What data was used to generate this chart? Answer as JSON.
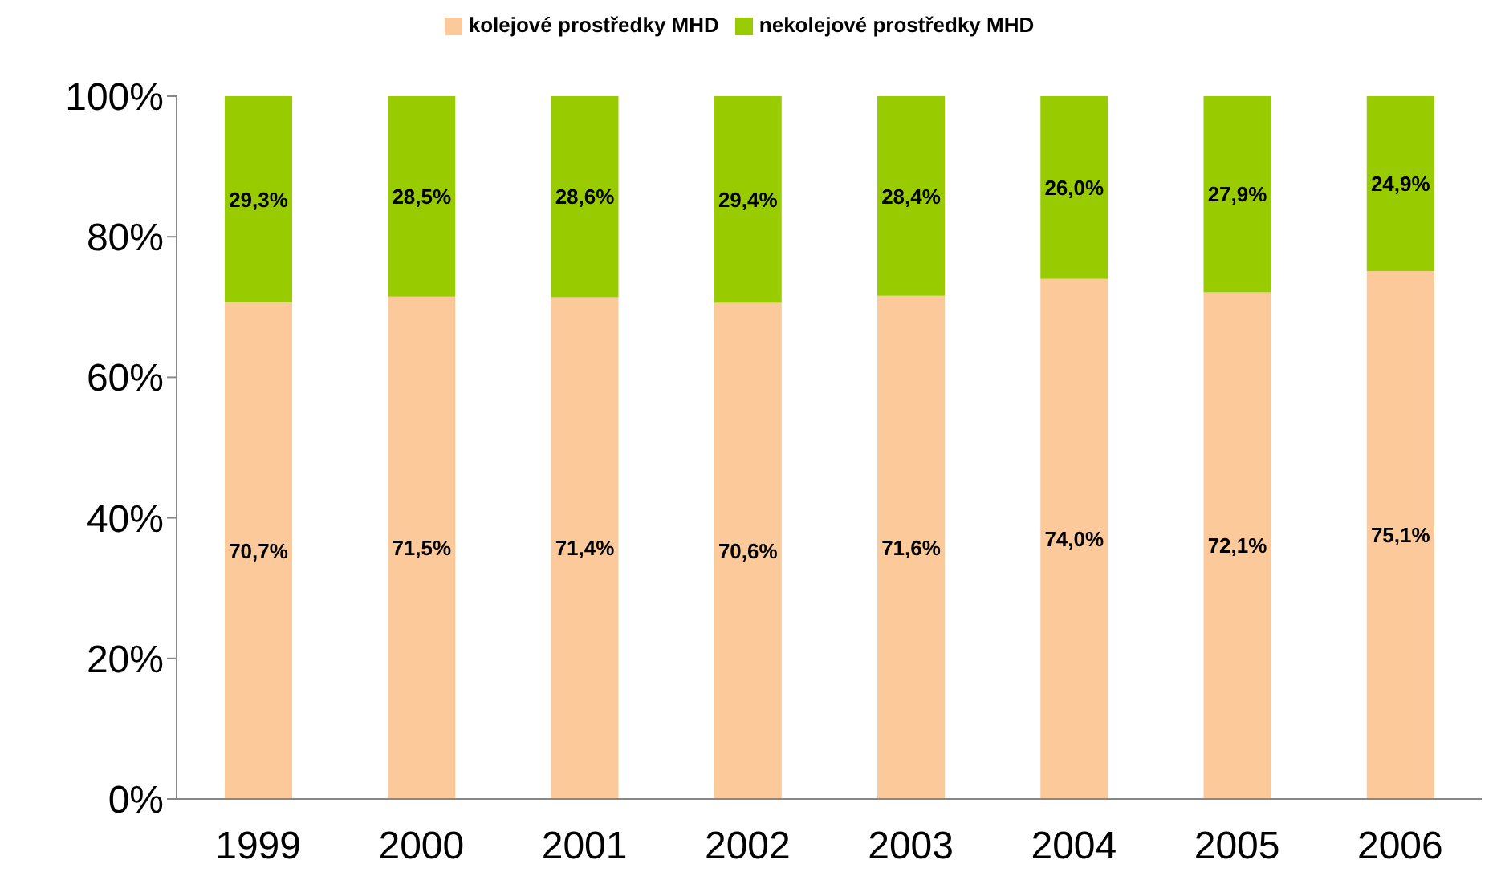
{
  "chart_data": {
    "type": "bar",
    "stacked": true,
    "categories": [
      "1999",
      "2000",
      "2001",
      "2002",
      "2003",
      "2004",
      "2005",
      "2006"
    ],
    "series": [
      {
        "name": "kolejové prostředky MHD",
        "color": "#fbc99a",
        "values": [
          70.7,
          71.5,
          71.4,
          70.6,
          71.6,
          74.0,
          72.1,
          75.1
        ],
        "value_labels": [
          "70,7%",
          "71,5%",
          "71,4%",
          "70,6%",
          "71,6%",
          "74,0%",
          "72,1%",
          "75,1%"
        ]
      },
      {
        "name": "nekolejové prostředky MHD",
        "color": "#99cc00",
        "values": [
          29.3,
          28.5,
          28.6,
          29.4,
          28.4,
          26.0,
          27.9,
          24.9
        ],
        "value_labels": [
          "29,3%",
          "28,5%",
          "28,6%",
          "29,4%",
          "28,4%",
          "26,0%",
          "27,9%",
          "24,9%"
        ]
      }
    ],
    "ylim": [
      0,
      100
    ],
    "yticks": [
      {
        "value": 0,
        "label": "0%"
      },
      {
        "value": 20,
        "label": "20%"
      },
      {
        "value": 40,
        "label": "40%"
      },
      {
        "value": 60,
        "label": "60%"
      },
      {
        "value": 80,
        "label": "80%"
      },
      {
        "value": 100,
        "label": "100%"
      }
    ],
    "grid": false,
    "legend": "top"
  }
}
